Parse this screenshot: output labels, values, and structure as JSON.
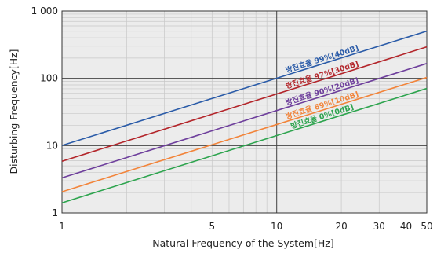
{
  "chart_data": {
    "type": "line",
    "xlabel": "Natural Frequency of the System[Hz]",
    "ylabel": "Disturbing Frequency[Hz]",
    "x_scale": "log",
    "y_scale": "log",
    "xlim": [
      1,
      50
    ],
    "ylim": [
      1,
      1000
    ],
    "x_ticks": [
      1,
      5,
      10,
      20,
      30,
      40,
      50
    ],
    "x_tick_labels": [
      "1",
      "5",
      "10",
      "20",
      "30",
      "40",
      "50"
    ],
    "y_ticks": [
      1,
      10,
      100,
      1000
    ],
    "y_tick_labels": [
      "1",
      "10",
      "100",
      "1 000"
    ],
    "grid": true,
    "series": [
      {
        "name": "방진효율 99%[40dB]",
        "color": "#2a5ba8",
        "x": [
          1,
          50
        ],
        "y": [
          10.05,
          502.5
        ]
      },
      {
        "name": "방진효율 97%[30dB]",
        "color": "#b3252a",
        "x": [
          1,
          50
        ],
        "y": [
          5.86,
          293
        ]
      },
      {
        "name": "방진효율 90%[20dB]",
        "color": "#6e3f9c",
        "x": [
          1,
          50
        ],
        "y": [
          3.32,
          166
        ]
      },
      {
        "name": "방진효율 69%[10dB]",
        "color": "#f2843a",
        "x": [
          1,
          50
        ],
        "y": [
          2.06,
          103
        ]
      },
      {
        "name": "방진효율 0%[0dB]",
        "color": "#2da44e",
        "x": [
          1,
          50
        ],
        "y": [
          1.41,
          70.7
        ]
      }
    ]
  }
}
